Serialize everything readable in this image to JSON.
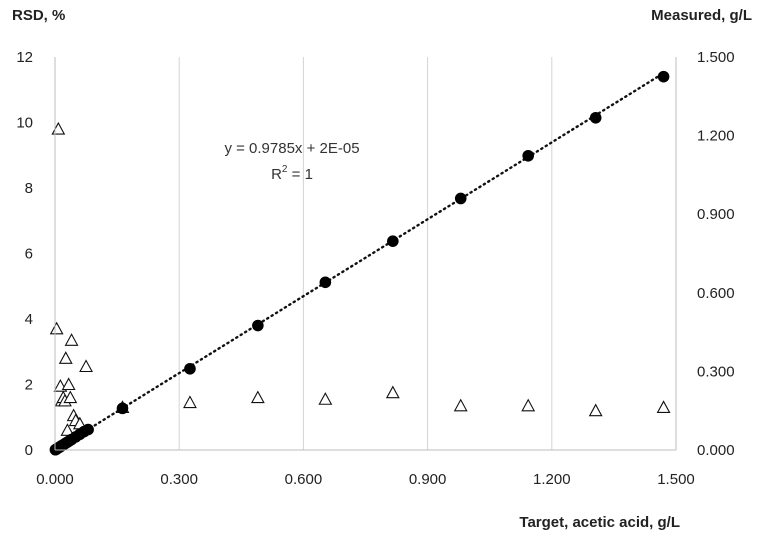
{
  "chart_data": {
    "type": "scatter",
    "left_axis_title": "RSD, %",
    "right_axis_title": "Measured, g/L",
    "x_axis_title": "Target, acetic acid, g/L",
    "xlim": [
      0,
      1.5
    ],
    "ylim_left": [
      0,
      12
    ],
    "ylim_right": [
      0,
      1.5
    ],
    "x_ticks": [
      "0.000",
      "0.300",
      "0.600",
      "0.900",
      "1.200",
      "1.500"
    ],
    "left_ticks": [
      "0",
      "2",
      "4",
      "6",
      "8",
      "10",
      "12"
    ],
    "right_ticks": [
      "0.000",
      "0.300",
      "0.600",
      "0.900",
      "1.200",
      "1.500"
    ],
    "grid": "vertical",
    "trendline": {
      "equation": "y = 0.9785x + 2E-05",
      "r2_prefix": "R",
      "r2_exp": "2",
      "r2_suffix": " = 1",
      "slope": 0.9785,
      "intercept": 2e-05,
      "style": "dotted"
    },
    "series": [
      {
        "marker": "filled-circle",
        "axis": "right",
        "x": [
          0.001,
          0.003,
          0.005,
          0.008,
          0.01,
          0.013,
          0.016,
          0.02,
          0.025,
          0.03,
          0.035,
          0.04,
          0.05,
          0.06,
          0.07,
          0.08,
          0.163,
          0.326,
          0.49,
          0.653,
          0.816,
          0.98,
          1.143,
          1.306,
          1.47
        ],
        "y": [
          0.001,
          0.003,
          0.005,
          0.008,
          0.01,
          0.013,
          0.016,
          0.02,
          0.025,
          0.03,
          0.035,
          0.04,
          0.05,
          0.06,
          0.07,
          0.078,
          0.159,
          0.31,
          0.475,
          0.64,
          0.797,
          0.96,
          1.123,
          1.268,
          1.425
        ]
      },
      {
        "marker": "open-triangle",
        "axis": "left",
        "x": [
          0.004,
          0.008,
          0.013,
          0.016,
          0.02,
          0.024,
          0.026,
          0.03,
          0.033,
          0.037,
          0.04,
          0.045,
          0.05,
          0.06,
          0.075,
          0.163,
          0.326,
          0.49,
          0.653,
          0.816,
          0.98,
          1.143,
          1.306,
          1.47
        ],
        "y": [
          3.7,
          9.8,
          1.95,
          1.5,
          1.6,
          1.5,
          2.8,
          0.6,
          2.0,
          1.6,
          3.35,
          1.05,
          0.9,
          0.8,
          2.55,
          1.3,
          1.45,
          1.6,
          1.55,
          1.75,
          1.35,
          1.35,
          1.2,
          1.3
        ]
      }
    ]
  }
}
